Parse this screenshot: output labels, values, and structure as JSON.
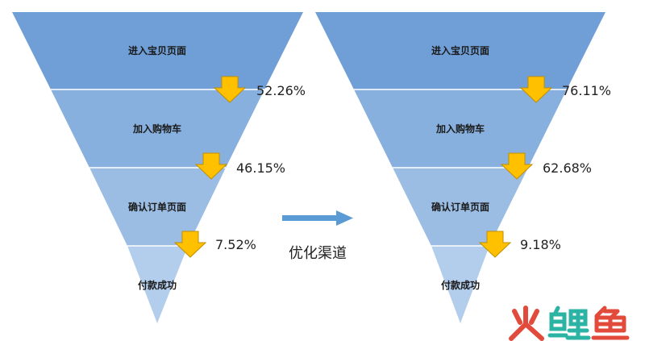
{
  "colors": {
    "stage_fills": [
      "#6f9fd6",
      "#88b0de",
      "#9bbde4",
      "#b3cdec"
    ],
    "divider": "#ffffff",
    "arrow_fill": "#ffc000",
    "arrow_stroke": "#c08f00",
    "middle_arrow": "#5b9bd5",
    "watermark_red": "#e24b3b",
    "watermark_teal": "#2bb3a3"
  },
  "funnels": [
    {
      "stages": [
        "进入宝贝页面",
        "加入购物车",
        "确认订单页面",
        "付款成功"
      ],
      "rates": [
        "52.26%",
        "46.15%",
        "7.52%"
      ]
    },
    {
      "stages": [
        "进入宝贝页面",
        "加入购物车",
        "确认订单页面",
        "付款成功"
      ],
      "rates": [
        "76.11%",
        "62.68%",
        "9.18%"
      ]
    }
  ],
  "middle_label": "优化渠道",
  "watermark": {
    "text": "火鲤鱼",
    "icon": "fire-carp-logo"
  }
}
